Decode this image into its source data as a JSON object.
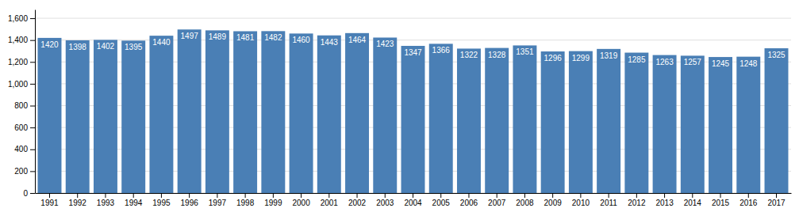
{
  "chart_data": {
    "type": "bar",
    "categories": [
      "1991",
      "1992",
      "1993",
      "1994",
      "1995",
      "1996",
      "1997",
      "1998",
      "1999",
      "2000",
      "2001",
      "2002",
      "2003",
      "2004",
      "2005",
      "2006",
      "2007",
      "2008",
      "2009",
      "2010",
      "2011",
      "2012",
      "2013",
      "2014",
      "2015",
      "2016",
      "2017"
    ],
    "values": [
      1420,
      1398,
      1402,
      1395,
      1440,
      1497,
      1489,
      1481,
      1482,
      1460,
      1443,
      1464,
      1423,
      1347,
      1366,
      1322,
      1328,
      1351,
      1296,
      1299,
      1319,
      1285,
      1263,
      1257,
      1245,
      1248,
      1325
    ],
    "color": "#4a7fb5",
    "ylim": [
      0,
      1680
    ],
    "yticks": [
      0,
      200,
      400,
      600,
      800,
      {
        "value": 1000,
        "label": "1,000"
      },
      {
        "value": 1200,
        "label": "1,200"
      },
      {
        "value": 1400,
        "label": "1,400"
      },
      {
        "value": 1600,
        "label": "1,600"
      }
    ],
    "grid": true,
    "data_labels": true
  }
}
